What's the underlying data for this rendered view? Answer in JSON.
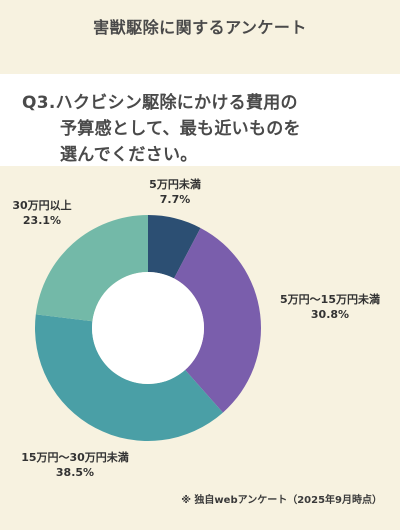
{
  "page_title": "害獣駆除に関するアンケート",
  "question": {
    "line1": "Q3.ハクビシン駆除にかける費用の",
    "line2": "予算感として、最も近いものを",
    "line3": "選んでください。"
  },
  "chart_data": {
    "type": "pie",
    "donut": true,
    "categories": [
      "5万円未満",
      "5万円～15万円未満",
      "15万円～30万円未満",
      "30万円以上"
    ],
    "values": [
      7.7,
      30.8,
      38.5,
      23.1
    ],
    "value_labels": [
      "7.7%",
      "30.8%",
      "38.5%",
      "23.1%"
    ],
    "colors": [
      "#2c4f73",
      "#7a5eac",
      "#4a9fa6",
      "#73b9a8"
    ]
  },
  "footnote": "※ 独自webアンケート（2025年9月時点）"
}
